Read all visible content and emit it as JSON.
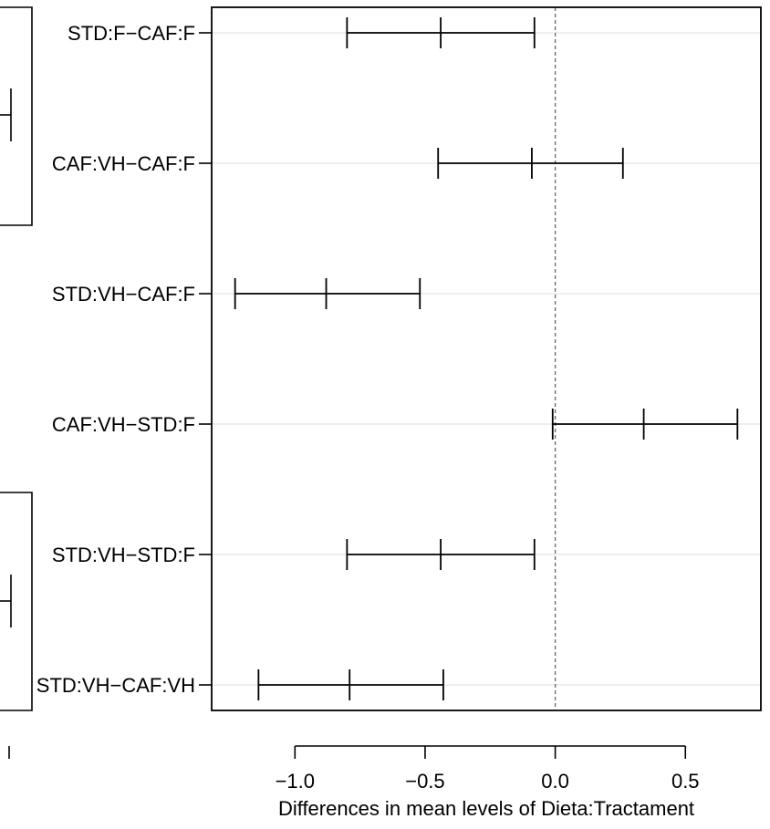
{
  "chart_data": {
    "type": "errorbar",
    "orientation": "horizontal",
    "title": "",
    "xlabel": "Differences in mean levels of Dieta:Tractament",
    "ylabel": "",
    "xlim": [
      -1.32,
      0.79
    ],
    "x_ticks": [
      -1.0,
      -0.5,
      0.0,
      0.5
    ],
    "x_tick_labels": [
      "−1.0",
      "−0.5",
      "0.0",
      "0.5"
    ],
    "reference_line": 0.0,
    "grid": "horizontal",
    "comparisons": [
      {
        "label": "STD:F−CAF:F",
        "lower": -0.8,
        "estimate": -0.44,
        "upper": -0.08
      },
      {
        "label": "CAF:VH−CAF:F",
        "lower": -0.45,
        "estimate": -0.09,
        "upper": 0.26
      },
      {
        "label": "STD:VH−CAF:F",
        "lower": -1.23,
        "estimate": -0.88,
        "upper": -0.52
      },
      {
        "label": "CAF:VH−STD:F",
        "lower": -0.01,
        "estimate": 0.34,
        "upper": 0.7
      },
      {
        "label": "STD:VH−STD:F",
        "lower": -0.8,
        "estimate": -0.44,
        "upper": -0.08
      },
      {
        "label": "STD:VH−CAF:VH",
        "lower": -1.14,
        "estimate": -0.79,
        "upper": -0.43
      }
    ]
  }
}
